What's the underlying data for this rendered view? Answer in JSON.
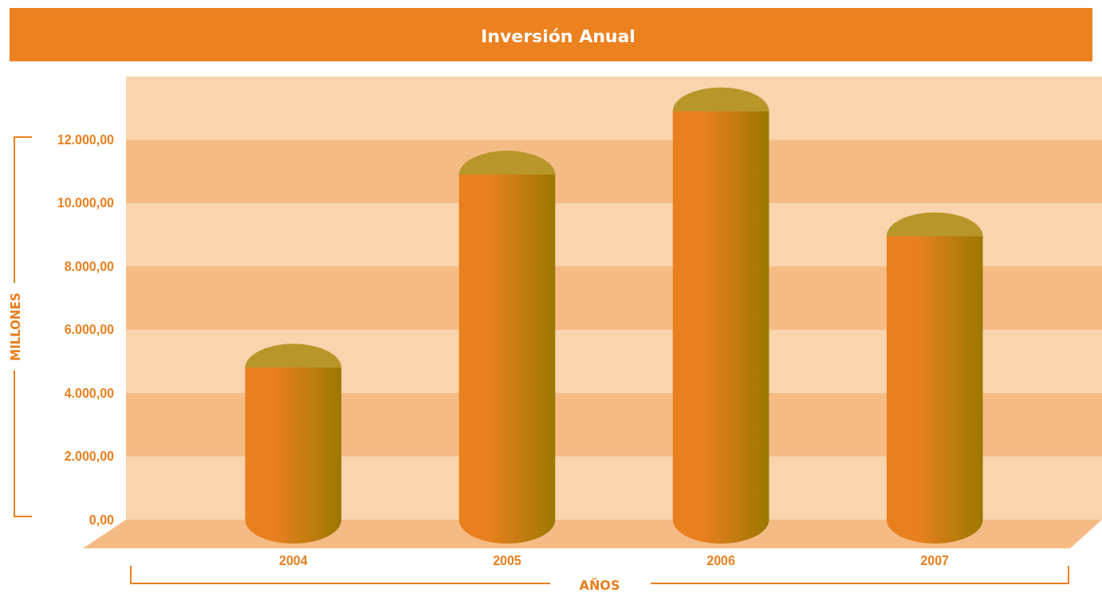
{
  "chart_data": {
    "type": "bar",
    "title": "Inversión Anual",
    "xlabel": "AÑOS",
    "ylabel": "MILLONES",
    "categories": [
      "2004",
      "2005",
      "2006",
      "2007"
    ],
    "values": [
      4800,
      10900,
      12900,
      8950
    ],
    "color": "#e98020",
    "ylim": [
      0,
      14000
    ],
    "yticks": [
      {
        "value": 0,
        "label": "0,00"
      },
      {
        "value": 2000,
        "label": "2.000,00"
      },
      {
        "value": 4000,
        "label": "4.000,00"
      },
      {
        "value": 6000,
        "label": "6.000,00"
      },
      {
        "value": 8000,
        "label": "8.000,00"
      },
      {
        "value": 10000,
        "label": "10.000,00"
      },
      {
        "value": 12000,
        "label": "12.000,00"
      }
    ],
    "bands": [
      {
        "axis": "y",
        "from": 2000,
        "to": 4000,
        "color": "#f5bb85"
      },
      {
        "axis": "y",
        "from": 6000,
        "to": 8000,
        "color": "#f5bb85"
      },
      {
        "axis": "y",
        "from": 10000,
        "to": 12000,
        "color": "#f5bb85"
      }
    ]
  }
}
